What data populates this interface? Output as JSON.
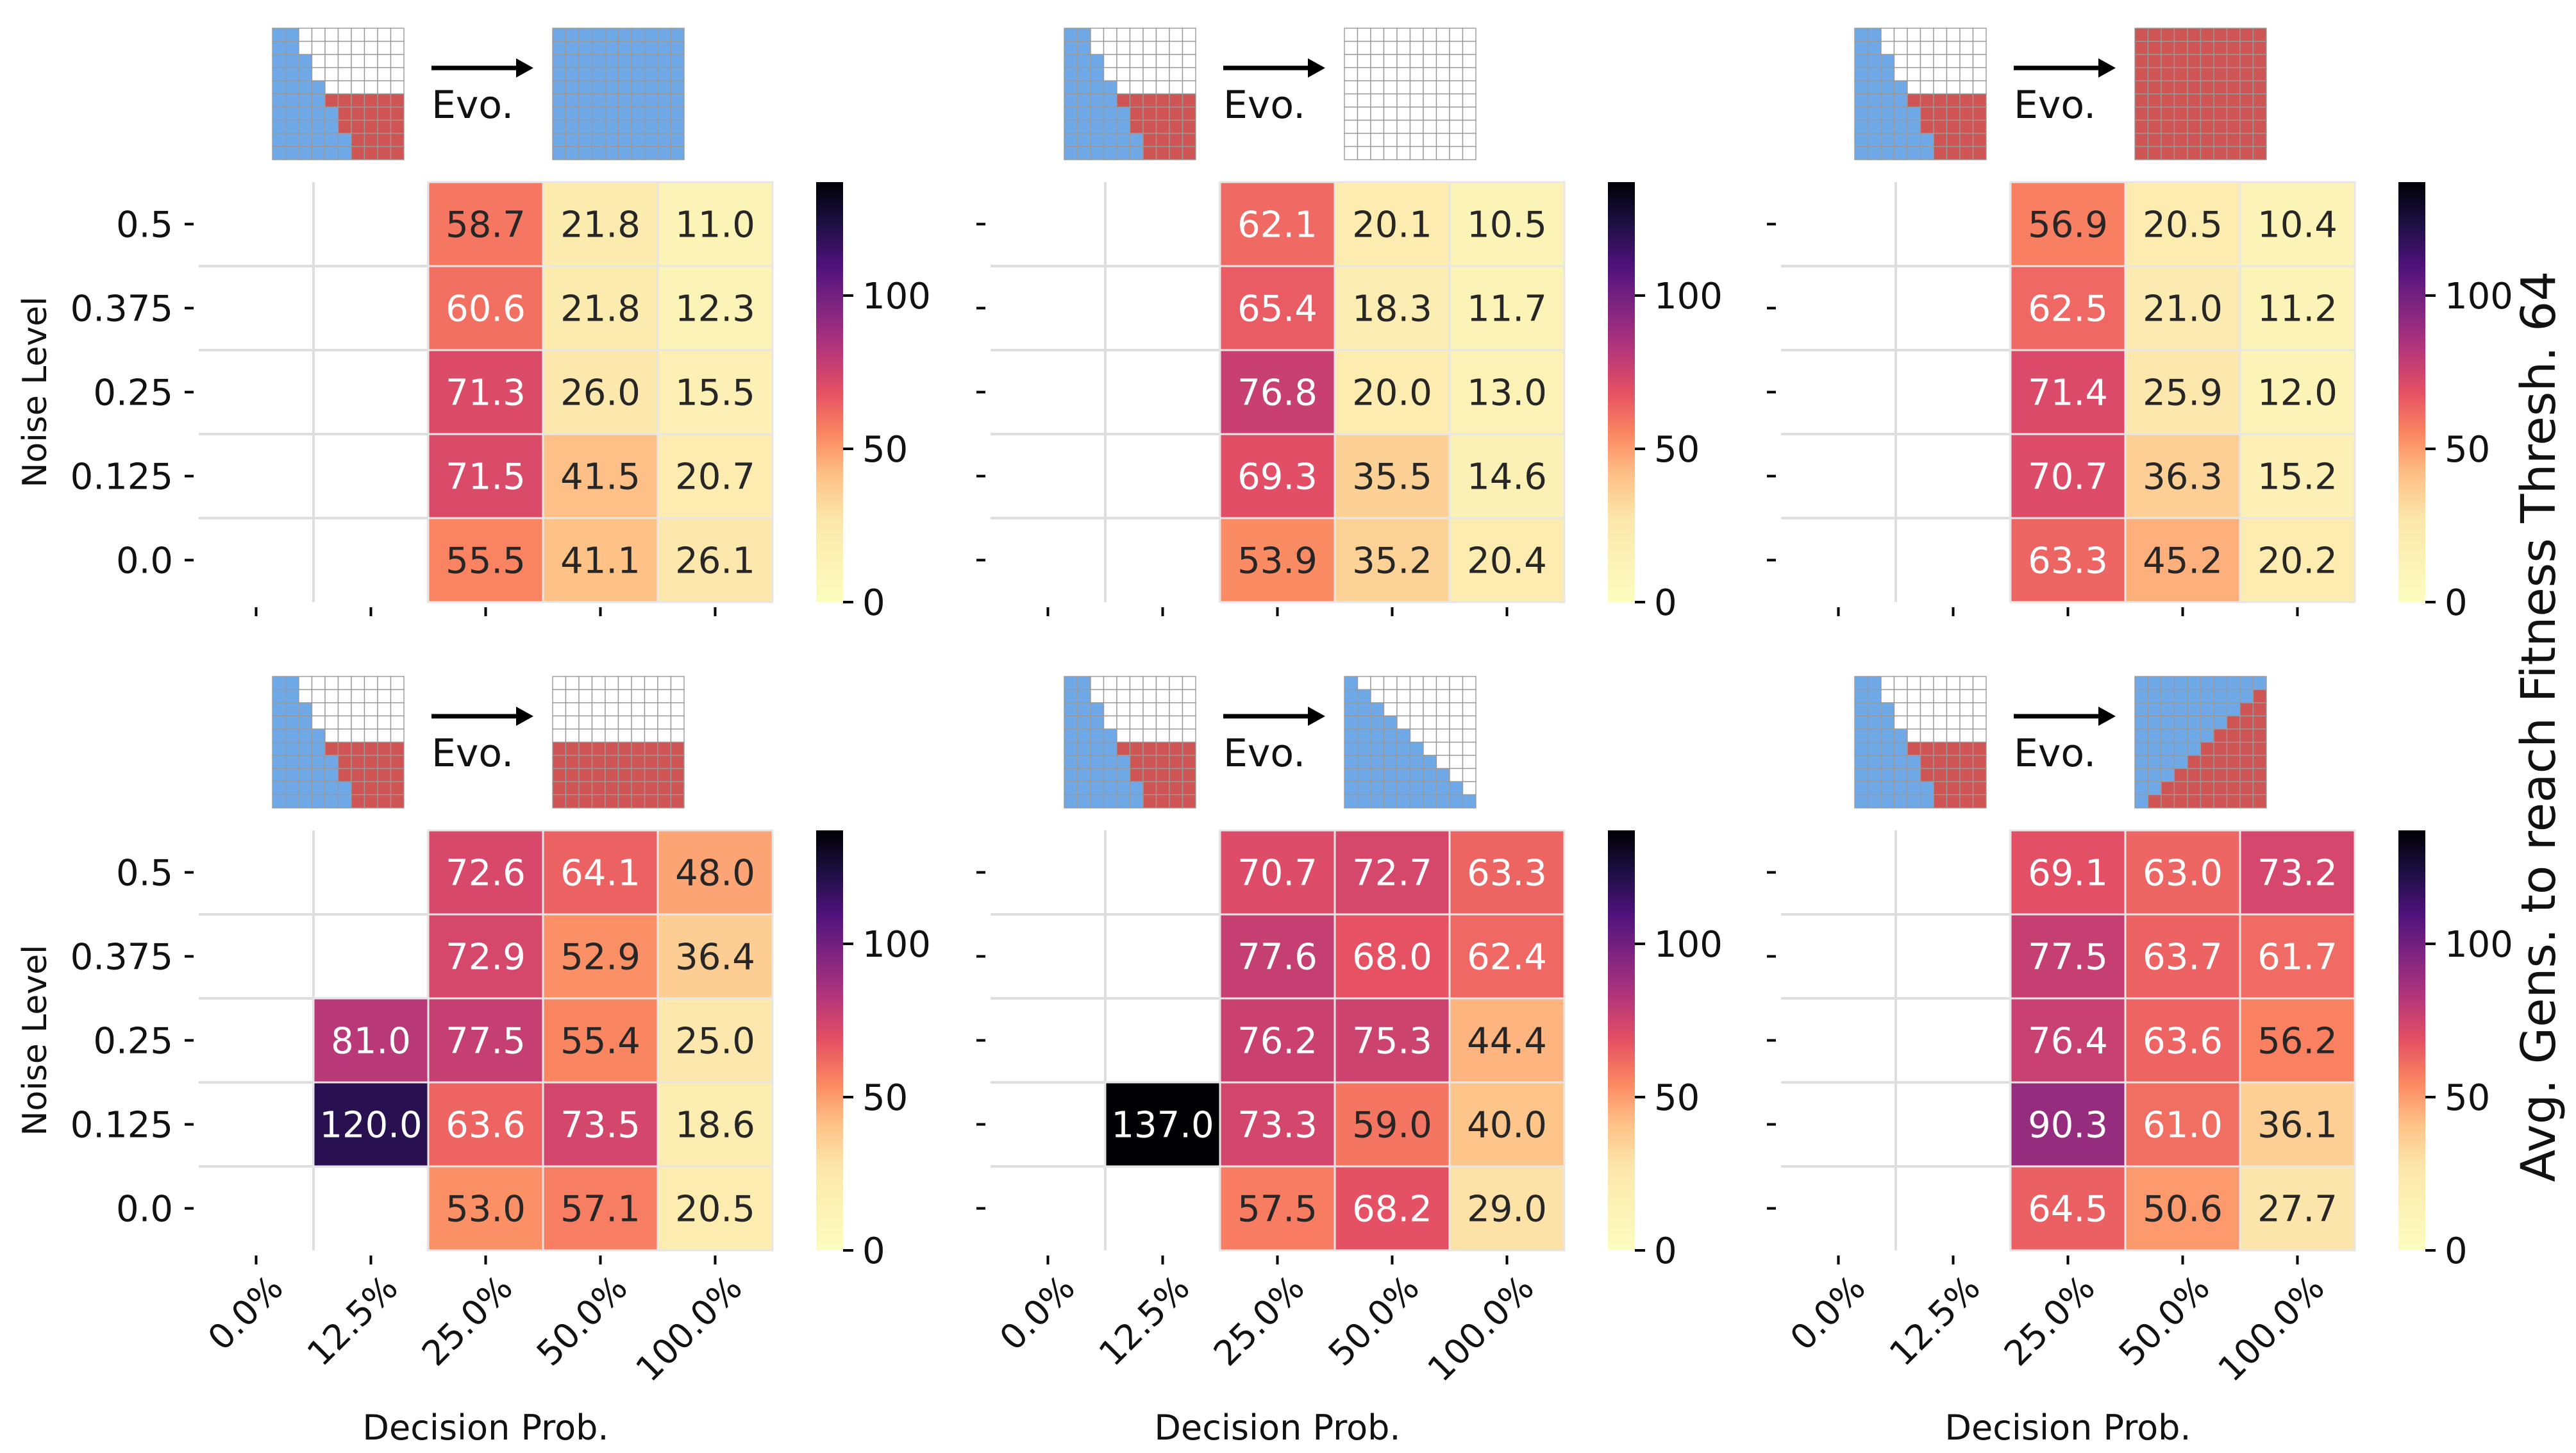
{
  "chart_data": {
    "type": "heatmap",
    "rows": [
      "0.5",
      "0.375",
      "0.25",
      "0.125",
      "0.0"
    ],
    "columns": [
      "0.0%",
      "12.5%",
      "25.0%",
      "50.0%",
      "100.0%"
    ],
    "ylabel": "Noise Level",
    "xlabel": "Decision Prob.",
    "colorbar_label": "Avg. Gens. to reach Fitness Thresh. 64",
    "colorbar_ticks": [
      "0",
      "50",
      "100"
    ],
    "colorbar_range": [
      0,
      137
    ],
    "colormap": "magma_r",
    "evo_label": "Evo.",
    "cell_colors": {
      "blue": "#6fa8e6",
      "red": "#cf5555",
      "grid": "#999999"
    },
    "panels": [
      {
        "id": "top-left",
        "target": "full-blue",
        "values": [
          [
            null,
            null,
            58.7,
            21.8,
            11.0
          ],
          [
            null,
            null,
            60.6,
            21.8,
            12.3
          ],
          [
            null,
            null,
            71.3,
            26.0,
            15.5
          ],
          [
            null,
            null,
            71.5,
            41.5,
            20.7
          ],
          [
            null,
            null,
            55.5,
            41.1,
            26.1
          ]
        ]
      },
      {
        "id": "top-middle",
        "target": "empty",
        "values": [
          [
            null,
            null,
            62.1,
            20.1,
            10.5
          ],
          [
            null,
            null,
            65.4,
            18.3,
            11.7
          ],
          [
            null,
            null,
            76.8,
            20.0,
            13.0
          ],
          [
            null,
            null,
            69.3,
            35.5,
            14.6
          ],
          [
            null,
            null,
            53.9,
            35.2,
            20.4
          ]
        ]
      },
      {
        "id": "top-right",
        "target": "full-red",
        "values": [
          [
            null,
            null,
            56.9,
            20.5,
            10.4
          ],
          [
            null,
            null,
            62.5,
            21.0,
            11.2
          ],
          [
            null,
            null,
            71.4,
            25.9,
            12.0
          ],
          [
            null,
            null,
            70.7,
            36.3,
            15.2
          ],
          [
            null,
            null,
            63.3,
            45.2,
            20.2
          ]
        ]
      },
      {
        "id": "bottom-left",
        "target": "bottom-red-half",
        "values": [
          [
            null,
            null,
            72.6,
            64.1,
            48.0
          ],
          [
            null,
            null,
            72.9,
            52.9,
            36.4
          ],
          [
            null,
            81.0,
            77.5,
            55.4,
            25.0
          ],
          [
            null,
            120.0,
            63.6,
            73.5,
            18.6
          ],
          [
            null,
            null,
            53.0,
            57.1,
            20.5
          ]
        ]
      },
      {
        "id": "bottom-middle",
        "target": "blue-triangle",
        "values": [
          [
            null,
            null,
            70.7,
            72.7,
            63.3
          ],
          [
            null,
            null,
            77.6,
            68.0,
            62.4
          ],
          [
            null,
            null,
            76.2,
            75.3,
            44.4
          ],
          [
            null,
            137.0,
            73.3,
            59.0,
            40.0
          ],
          [
            null,
            null,
            57.5,
            68.2,
            29.0
          ]
        ]
      },
      {
        "id": "bottom-right",
        "target": "diagonal-split",
        "values": [
          [
            null,
            null,
            69.1,
            63.0,
            73.2
          ],
          [
            null,
            null,
            77.5,
            63.7,
            61.7
          ],
          [
            null,
            null,
            76.4,
            63.6,
            56.2
          ],
          [
            null,
            null,
            90.3,
            61.0,
            36.1
          ],
          [
            null,
            null,
            64.5,
            50.6,
            27.7
          ]
        ]
      }
    ]
  }
}
